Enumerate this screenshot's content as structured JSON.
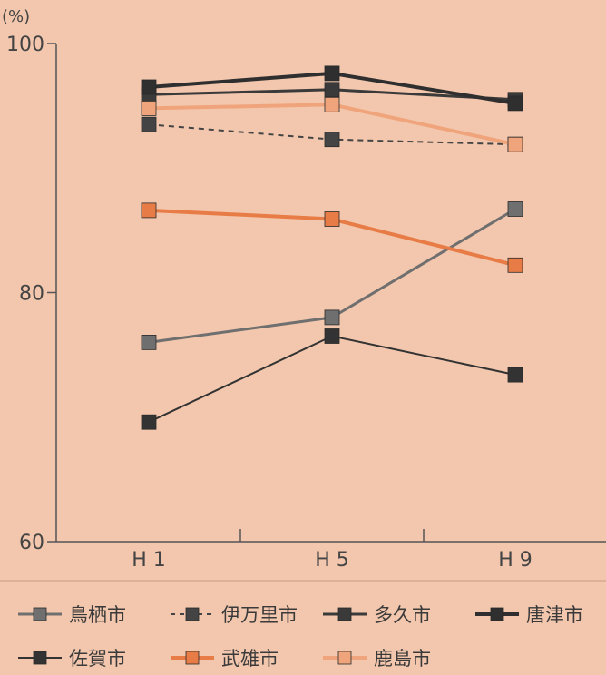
{
  "chart_data": {
    "type": "line",
    "unit_label": "(%)",
    "categories": [
      "H 1",
      "H 5",
      "H 9"
    ],
    "yticks": [
      60,
      80,
      100
    ],
    "ylim": [
      60,
      100
    ],
    "grid": false,
    "legend_position": "bottom",
    "series": [
      {
        "name": "鳥栖市",
        "values": [
          76.0,
          78.0,
          86.7
        ],
        "color": "#6f6f6f",
        "dash": false,
        "width": 3
      },
      {
        "name": "伊万里市",
        "values": [
          93.5,
          92.3,
          91.9
        ],
        "color": "#444444",
        "dash": true,
        "width": 2
      },
      {
        "name": "多久市",
        "values": [
          95.9,
          96.3,
          95.5
        ],
        "color": "#3a3a3a",
        "dash": false,
        "width": 3
      },
      {
        "name": "唐津市",
        "values": [
          96.5,
          97.6,
          95.2
        ],
        "color": "#2f2f2f",
        "dash": false,
        "width": 4
      },
      {
        "name": "佐賀市",
        "values": [
          69.6,
          76.5,
          73.4
        ],
        "color": "#333333",
        "dash": false,
        "width": 2
      },
      {
        "name": "武雄市",
        "values": [
          86.6,
          85.9,
          82.2
        ],
        "color": "#e87c46",
        "dash": false,
        "width": 4
      },
      {
        "name": "鹿島市",
        "values": [
          94.8,
          95.1,
          91.9
        ],
        "color": "#f0a47c",
        "dash": false,
        "width": 4
      }
    ]
  }
}
